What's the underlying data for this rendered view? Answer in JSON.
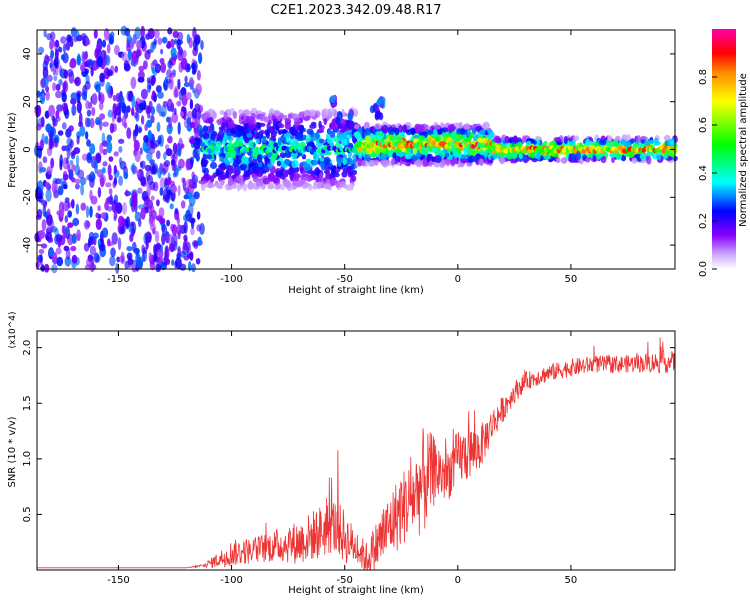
{
  "title": "C2E1.2023.342.09.48.R17",
  "chart_data": [
    {
      "type": "heatmap",
      "xlabel": "Height of straight line (km)",
      "ylabel": "Frequency (Hz)",
      "xlim": [
        -186,
        96
      ],
      "ylim": [
        -50,
        50
      ],
      "xticks": [
        -150,
        -100,
        -50,
        0,
        50
      ],
      "yticks": [
        -40,
        -20,
        0,
        20,
        40
      ],
      "grid": false,
      "colorbar": {
        "label": "Normalized spectral amplitude",
        "range": [
          0,
          1
        ],
        "ticks": [
          0.0,
          0.2,
          0.4,
          0.6,
          0.8
        ],
        "colors": [
          "#ffffff",
          "#8800ff",
          "#0000ff",
          "#00ffff",
          "#00ff00",
          "#ffff00",
          "#ff8800",
          "#ff0000",
          "#ff00aa"
        ]
      },
      "regions": [
        {
          "x_range": [
            -186,
            -113
          ],
          "description": "broadband noise",
          "freq_range": [
            -50,
            50
          ],
          "amplitude": [
            0.1,
            0.3
          ]
        },
        {
          "x_range": [
            -113,
            -45
          ],
          "freq_center": 0,
          "freq_halfwidth": 10,
          "amplitude": [
            0.2,
            0.5
          ]
        },
        {
          "x_range": [
            -45,
            15
          ],
          "freq_center": 2,
          "freq_halfwidth": 5,
          "amplitude": [
            0.4,
            0.95
          ]
        },
        {
          "x_range": [
            15,
            96
          ],
          "freq_center": 0,
          "freq_halfwidth": 3,
          "amplitude": [
            0.5,
            0.9
          ]
        }
      ],
      "features": [
        {
          "x": -52,
          "y": 13
        },
        {
          "x": -48,
          "y": 11
        },
        {
          "x": -47,
          "y": 15
        },
        {
          "x": -37,
          "y": 18
        },
        {
          "x": -35,
          "y": 15
        },
        {
          "x": -34,
          "y": 20
        },
        {
          "x": -55,
          "y": 20
        }
      ]
    },
    {
      "type": "line",
      "xlabel": "Height of straight line (km)",
      "ylabel": "SNR (10 * v/v)",
      "y_multiplier": "(x10^4)",
      "xlim": [
        -186,
        96
      ],
      "ylim": [
        0,
        2.15
      ],
      "xticks": [
        -150,
        -100,
        -50,
        0,
        50
      ],
      "yticks": [
        0.5,
        1.0,
        1.5,
        2.0
      ],
      "ytick_labels": [
        "0.5",
        "1.0",
        "1.5",
        "2.0"
      ],
      "color": "#ee3333",
      "x": [
        -186,
        -150,
        -120,
        -112,
        -105,
        -100,
        -90,
        -80,
        -70,
        -60,
        -55,
        -50,
        -45,
        -40,
        -35,
        -30,
        -25,
        -20,
        -15,
        -10,
        -5,
        0,
        5,
        10,
        15,
        20,
        25,
        30,
        40,
        50,
        60,
        70,
        80,
        90,
        96
      ],
      "values": [
        0.02,
        0.02,
        0.02,
        0.04,
        0.1,
        0.15,
        0.18,
        0.22,
        0.25,
        0.35,
        0.4,
        0.3,
        0.2,
        0.1,
        0.25,
        0.4,
        0.55,
        0.65,
        0.8,
        0.9,
        0.85,
        1.0,
        1.05,
        1.1,
        1.3,
        1.45,
        1.6,
        1.7,
        1.77,
        1.82,
        1.85,
        1.85,
        1.86,
        1.87,
        1.87
      ],
      "spread": [
        0,
        0,
        0,
        0.02,
        0.08,
        0.12,
        0.12,
        0.15,
        0.2,
        0.25,
        0.25,
        0.25,
        0.15,
        0.15,
        0.25,
        0.3,
        0.35,
        0.35,
        0.5,
        0.3,
        0.25,
        0.25,
        0.25,
        0.2,
        0.15,
        0.12,
        0.1,
        0.08,
        0.08,
        0.08,
        0.08,
        0.08,
        0.08,
        0.1,
        0.1
      ]
    }
  ]
}
